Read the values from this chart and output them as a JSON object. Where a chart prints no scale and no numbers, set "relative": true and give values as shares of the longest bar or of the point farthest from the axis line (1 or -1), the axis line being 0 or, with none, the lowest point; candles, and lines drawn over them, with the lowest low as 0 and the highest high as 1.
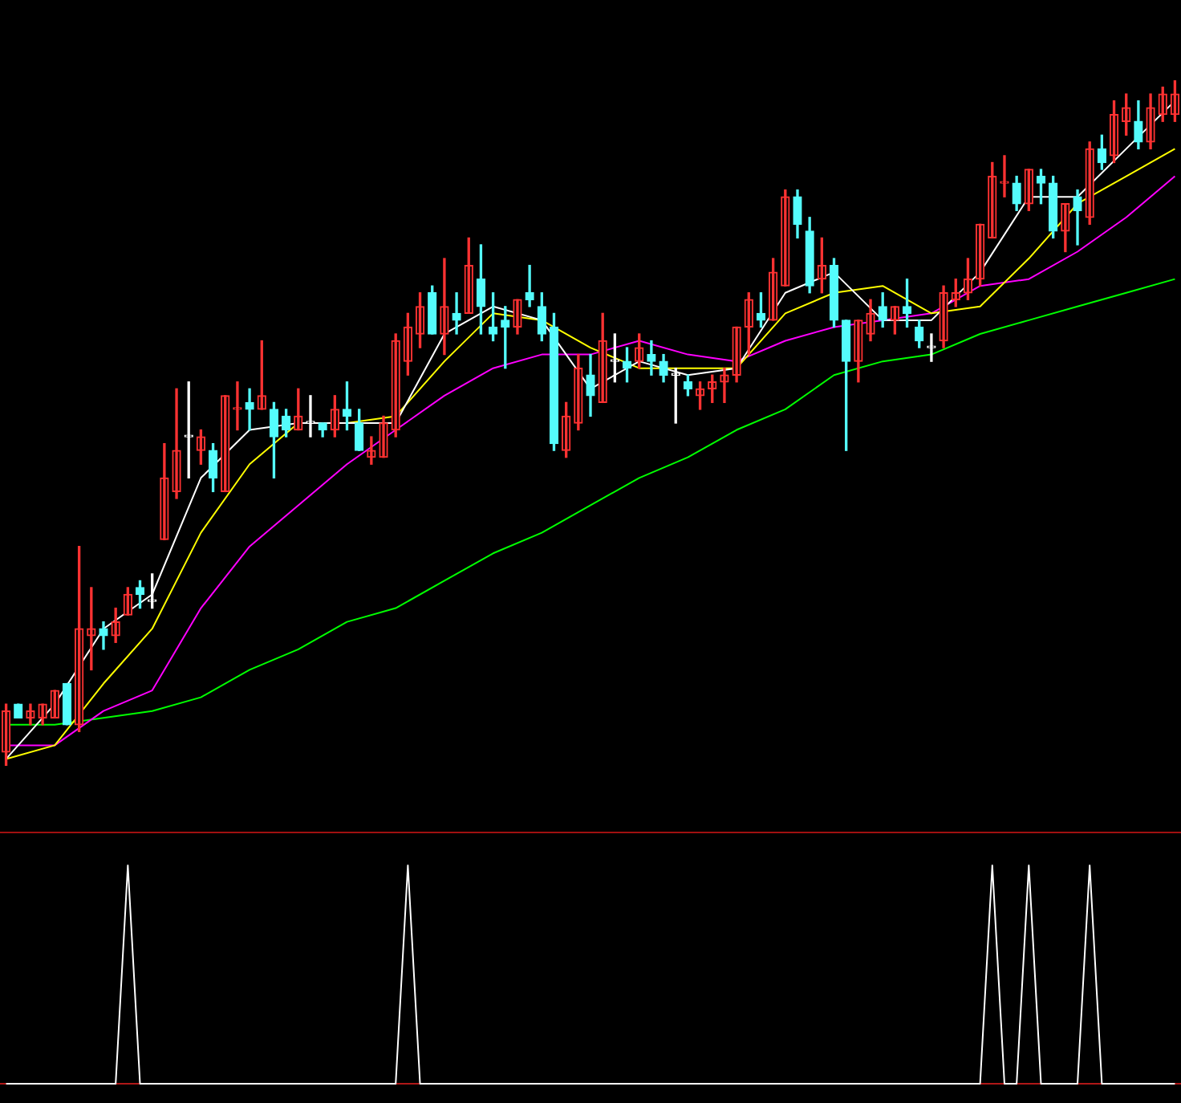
{
  "chart_data": [
    {
      "type": "candlestick",
      "relative": true,
      "categories": [
        null,
        null,
        null,
        null,
        null,
        null,
        null,
        null,
        null,
        null,
        null,
        null,
        null,
        null,
        null,
        null,
        null,
        null,
        null,
        null,
        null,
        null,
        null,
        null,
        null,
        null,
        null,
        null,
        null,
        null,
        null,
        null,
        null,
        null,
        null,
        null,
        null,
        null,
        null,
        null,
        null,
        null,
        null,
        null,
        null,
        null,
        null,
        null,
        null,
        null,
        null,
        null,
        null,
        null,
        null,
        null,
        null,
        null,
        null,
        null,
        null,
        null,
        null,
        null,
        null,
        null,
        null,
        null,
        null,
        null,
        null,
        null,
        null,
        null,
        null,
        null,
        null,
        null,
        null,
        null,
        null,
        null,
        null,
        null,
        null,
        null,
        null,
        null,
        null,
        null,
        null,
        null,
        null,
        null,
        null,
        null,
        null
      ],
      "ohlc": [
        [
          0.02,
          0.09,
          0,
          0.08
        ],
        [
          0.09,
          0.09,
          0.07,
          0.07
        ],
        [
          0.07,
          0.09,
          0.06,
          0.08
        ],
        [
          0.07,
          0.09,
          0.06,
          0.09
        ],
        [
          0.07,
          0.11,
          0.07,
          0.11
        ],
        [
          0.12,
          0.12,
          0.06,
          0.06
        ],
        [
          0.06,
          0.32,
          0.05,
          0.2
        ],
        [
          0.19,
          0.26,
          0.14,
          0.2
        ],
        [
          0.2,
          0.21,
          0.17,
          0.19
        ],
        [
          0.19,
          0.23,
          0.18,
          0.21
        ],
        [
          0.22,
          0.26,
          0.22,
          0.25
        ],
        [
          0.26,
          0.27,
          0.23,
          0.25
        ],
        [
          0.24,
          0.28,
          0.23,
          0.24
        ],
        [
          0.33,
          0.47,
          0.33,
          0.42
        ],
        [
          0.4,
          0.55,
          0.39,
          0.46
        ],
        [
          0.48,
          0.56,
          0.42,
          0.48
        ],
        [
          0.46,
          0.49,
          0.44,
          0.48
        ],
        [
          0.46,
          0.47,
          0.4,
          0.42
        ],
        [
          0.4,
          0.54,
          0.4,
          0.54
        ],
        [
          0.52,
          0.56,
          0.49,
          0.52
        ],
        [
          0.53,
          0.55,
          0.49,
          0.52
        ],
        [
          0.52,
          0.62,
          0.52,
          0.54
        ],
        [
          0.52,
          0.53,
          0.42,
          0.48
        ],
        [
          0.51,
          0.52,
          0.48,
          0.49
        ],
        [
          0.49,
          0.55,
          0.49,
          0.51
        ],
        [
          0.5,
          0.54,
          0.48,
          0.5
        ],
        [
          0.5,
          0.5,
          0.48,
          0.49
        ],
        [
          0.49,
          0.54,
          0.48,
          0.52
        ],
        [
          0.52,
          0.56,
          0.49,
          0.51
        ],
        [
          0.5,
          0.52,
          0.46,
          0.46
        ],
        [
          0.45,
          0.48,
          0.44,
          0.46
        ],
        [
          0.45,
          0.51,
          0.45,
          0.5
        ],
        [
          0.49,
          0.63,
          0.48,
          0.62
        ],
        [
          0.59,
          0.66,
          0.57,
          0.64
        ],
        [
          0.63,
          0.69,
          0.61,
          0.67
        ],
        [
          0.69,
          0.7,
          0.63,
          0.63
        ],
        [
          0.63,
          0.74,
          0.6,
          0.67
        ],
        [
          0.66,
          0.69,
          0.63,
          0.65
        ],
        [
          0.66,
          0.77,
          0.66,
          0.73
        ],
        [
          0.71,
          0.76,
          0.63,
          0.67
        ],
        [
          0.64,
          0.69,
          0.62,
          0.63
        ],
        [
          0.65,
          0.67,
          0.58,
          0.64
        ],
        [
          0.64,
          0.68,
          0.63,
          0.68
        ],
        [
          0.69,
          0.73,
          0.67,
          0.68
        ],
        [
          0.67,
          0.69,
          0.62,
          0.63
        ],
        [
          0.64,
          0.66,
          0.46,
          0.47
        ],
        [
          0.46,
          0.53,
          0.45,
          0.51
        ],
        [
          0.5,
          0.6,
          0.49,
          0.58
        ],
        [
          0.57,
          0.6,
          0.51,
          0.54
        ],
        [
          0.53,
          0.66,
          0.53,
          0.62
        ],
        [
          0.59,
          0.63,
          0.56,
          0.59
        ],
        [
          0.59,
          0.61,
          0.56,
          0.58
        ],
        [
          0.59,
          0.63,
          0.58,
          0.61
        ],
        [
          0.6,
          0.62,
          0.57,
          0.59
        ],
        [
          0.59,
          0.6,
          0.56,
          0.57
        ],
        [
          0.57,
          0.58,
          0.5,
          0.57
        ],
        [
          0.56,
          0.57,
          0.54,
          0.55
        ],
        [
          0.54,
          0.56,
          0.52,
          0.55
        ],
        [
          0.55,
          0.57,
          0.53,
          0.56
        ],
        [
          0.56,
          0.58,
          0.53,
          0.57
        ],
        [
          0.57,
          0.64,
          0.56,
          0.64
        ],
        [
          0.64,
          0.69,
          0.6,
          0.68
        ],
        [
          0.66,
          0.69,
          0.64,
          0.65
        ],
        [
          0.65,
          0.74,
          0.65,
          0.72
        ],
        [
          0.7,
          0.84,
          0.7,
          0.83
        ],
        [
          0.83,
          0.84,
          0.77,
          0.79
        ],
        [
          0.78,
          0.8,
          0.69,
          0.7
        ],
        [
          0.71,
          0.77,
          0.69,
          0.73
        ],
        [
          0.73,
          0.74,
          0.64,
          0.65
        ],
        [
          0.65,
          0.65,
          0.46,
          0.59
        ],
        [
          0.59,
          0.65,
          0.56,
          0.65
        ],
        [
          0.63,
          0.68,
          0.62,
          0.66
        ],
        [
          0.67,
          0.69,
          0.64,
          0.65
        ],
        [
          0.65,
          0.67,
          0.63,
          0.67
        ],
        [
          0.67,
          0.71,
          0.64,
          0.66
        ],
        [
          0.64,
          0.65,
          0.61,
          0.62
        ],
        [
          0.61,
          0.63,
          0.59,
          0.61
        ],
        [
          0.62,
          0.7,
          0.61,
          0.69
        ],
        [
          0.68,
          0.71,
          0.67,
          0.69
        ],
        [
          0.69,
          0.74,
          0.68,
          0.71
        ],
        [
          0.71,
          0.79,
          0.7,
          0.79
        ],
        [
          0.77,
          0.88,
          0.77,
          0.86
        ],
        [
          0.85,
          0.89,
          0.83,
          0.85
        ],
        [
          0.85,
          0.86,
          0.81,
          0.82
        ],
        [
          0.82,
          0.87,
          0.81,
          0.87
        ],
        [
          0.86,
          0.87,
          0.82,
          0.85
        ],
        [
          0.85,
          0.86,
          0.77,
          0.78
        ],
        [
          0.78,
          0.82,
          0.75,
          0.82
        ],
        [
          0.83,
          0.84,
          0.76,
          0.81
        ],
        [
          0.8,
          0.91,
          0.79,
          0.9
        ],
        [
          0.9,
          0.92,
          0.87,
          0.88
        ],
        [
          0.89,
          0.97,
          0.88,
          0.95
        ],
        [
          0.94,
          0.98,
          0.92,
          0.96
        ],
        [
          0.94,
          0.97,
          0.9,
          0.91
        ],
        [
          0.91,
          0.98,
          0.9,
          0.96
        ],
        [
          0.95,
          0.99,
          0.94,
          0.98
        ],
        [
          0.95,
          1,
          0.94,
          0.98
        ]
      ],
      "colors": [
        "#ff3232",
        "#54fcfc",
        "#ff3232",
        "#ff3232",
        "#ff3232",
        "#54fcfc",
        "#ff3232",
        "#ff3232",
        "#54fcfc",
        "#ff3232",
        "#ff3232",
        "#54fcfc",
        "#ffffff",
        "#ff3232",
        "#ff3232",
        "#ffffff",
        "#ff3232",
        "#54fcfc",
        "#ff3232",
        "#ff3232",
        "#54fcfc",
        "#ff3232",
        "#54fcfc",
        "#54fcfc",
        "#ff3232",
        "#ffffff",
        "#54fcfc",
        "#ff3232",
        "#54fcfc",
        "#54fcfc",
        "#ff3232",
        "#ff3232",
        "#ff3232",
        "#ff3232",
        "#ff3232",
        "#54fcfc",
        "#ff3232",
        "#54fcfc",
        "#ff3232",
        "#54fcfc",
        "#54fcfc",
        "#54fcfc",
        "#ff3232",
        "#54fcfc",
        "#54fcfc",
        "#54fcfc",
        "#ff3232",
        "#ff3232",
        "#54fcfc",
        "#ff3232",
        "#ffffff",
        "#54fcfc",
        "#ff3232",
        "#54fcfc",
        "#54fcfc",
        "#ffffff",
        "#54fcfc",
        "#ff3232",
        "#ff3232",
        "#ff3232",
        "#ff3232",
        "#ff3232",
        "#54fcfc",
        "#ff3232",
        "#ff3232",
        "#54fcfc",
        "#54fcfc",
        "#ff3232",
        "#54fcfc",
        "#54fcfc",
        "#ff3232",
        "#ff3232",
        "#54fcfc",
        "#ff3232",
        "#54fcfc",
        "#54fcfc",
        "#ffffff",
        "#ff3232",
        "#ff3232",
        "#ff3232",
        "#ff3232",
        "#ff3232",
        "#ff3232",
        "#54fcfc",
        "#ff3232",
        "#54fcfc",
        "#54fcfc",
        "#ff3232",
        "#54fcfc",
        "#ff3232",
        "#54fcfc",
        "#ff3232",
        "#ff3232",
        "#54fcfc",
        "#ff3232",
        "#ff3232",
        "#ff3232"
      ],
      "series": [
        {
          "type": "line",
          "color": "#ffffff",
          "values": [
            0.01,
            null,
            null,
            null,
            0.09,
            null,
            null,
            null,
            0.2,
            null,
            null,
            null,
            0.25,
            null,
            null,
            null,
            0.42,
            null,
            null,
            null,
            0.49,
            null,
            null,
            null,
            0.5,
            null,
            null,
            null,
            0.5,
            null,
            null,
            null,
            0.5,
            null,
            null,
            null,
            0.63,
            null,
            null,
            null,
            0.67,
            null,
            null,
            null,
            0.65,
            null,
            null,
            null,
            0.55,
            null,
            null,
            null,
            0.59,
            null,
            null,
            null,
            0.57,
            null,
            null,
            null,
            0.58,
            null,
            null,
            null,
            0.69,
            null,
            null,
            null,
            0.72,
            null,
            null,
            null,
            0.65,
            null,
            null,
            null,
            0.65,
            null,
            null,
            null,
            0.72,
            null,
            null,
            null,
            0.83,
            null,
            null,
            null,
            0.83,
            null,
            null,
            null,
            0.9,
            null,
            null,
            null,
            0.97
          ]
        },
        {
          "type": "line",
          "color": "#ffff00",
          "values": [
            0.01,
            null,
            null,
            null,
            0.03,
            null,
            null,
            null,
            0.12,
            null,
            null,
            null,
            0.2,
            null,
            null,
            null,
            0.34,
            null,
            null,
            null,
            0.44,
            null,
            null,
            null,
            0.5,
            null,
            null,
            null,
            0.5,
            null,
            null,
            null,
            0.51,
            null,
            null,
            null,
            0.59,
            null,
            null,
            null,
            0.66,
            null,
            null,
            null,
            0.65,
            null,
            null,
            null,
            0.61,
            null,
            null,
            null,
            0.58,
            null,
            null,
            null,
            0.58,
            null,
            null,
            null,
            0.58,
            null,
            null,
            null,
            0.66,
            null,
            null,
            null,
            0.69,
            null,
            null,
            null,
            0.7,
            null,
            null,
            null,
            0.66,
            null,
            null,
            null,
            0.67,
            null,
            null,
            null,
            0.74,
            null,
            null,
            null,
            0.82,
            null,
            null,
            null,
            0.86,
            null,
            null,
            null,
            0.9
          ]
        },
        {
          "type": "line",
          "color": "#ff00ff",
          "values": [
            0.03,
            null,
            null,
            null,
            0.03,
            null,
            null,
            null,
            0.08,
            null,
            null,
            null,
            0.11,
            null,
            null,
            null,
            0.23,
            null,
            null,
            null,
            0.32,
            null,
            null,
            null,
            0.38,
            null,
            null,
            null,
            0.44,
            null,
            null,
            null,
            0.49,
            null,
            null,
            null,
            0.54,
            null,
            null,
            null,
            0.58,
            null,
            null,
            null,
            0.6,
            null,
            null,
            null,
            0.6,
            null,
            null,
            null,
            0.62,
            null,
            null,
            null,
            0.6,
            null,
            null,
            null,
            0.59,
            null,
            null,
            null,
            0.62,
            null,
            null,
            null,
            0.64,
            null,
            null,
            null,
            0.65,
            null,
            null,
            null,
            0.66,
            null,
            null,
            null,
            0.7,
            null,
            null,
            null,
            0.71,
            null,
            null,
            null,
            0.75,
            null,
            null,
            null,
            0.8,
            null,
            null,
            null,
            0.86
          ]
        },
        {
          "type": "line",
          "color": "#00ff00",
          "values": [
            0.06,
            null,
            null,
            null,
            0.06,
            null,
            null,
            null,
            0.07,
            null,
            null,
            null,
            0.08,
            null,
            null,
            null,
            0.1,
            null,
            null,
            null,
            0.14,
            null,
            null,
            null,
            0.17,
            null,
            null,
            null,
            0.21,
            null,
            null,
            null,
            0.23,
            null,
            null,
            null,
            0.27,
            null,
            null,
            null,
            0.31,
            null,
            null,
            null,
            0.34,
            null,
            null,
            null,
            0.38,
            null,
            null,
            null,
            0.42,
            null,
            null,
            null,
            0.45,
            null,
            null,
            null,
            0.49,
            null,
            null,
            null,
            0.52,
            null,
            null,
            null,
            0.57,
            null,
            null,
            null,
            0.59,
            null,
            null,
            null,
            0.6,
            null,
            null,
            null,
            0.63,
            null,
            null,
            null,
            0.65,
            null,
            null,
            null,
            0.67,
            null,
            null,
            null,
            0.69,
            null,
            null,
            null,
            0.71
          ]
        }
      ]
    },
    {
      "type": "line",
      "relative": true,
      "categories": [
        null,
        null,
        null,
        null,
        null,
        null,
        null,
        null,
        null,
        null,
        null,
        null,
        null,
        null,
        null,
        null,
        null,
        null,
        null,
        null,
        null,
        null,
        null,
        null,
        null,
        null,
        null,
        null,
        null,
        null,
        null,
        null,
        null,
        null,
        null,
        null,
        null,
        null,
        null,
        null,
        null,
        null,
        null,
        null,
        null,
        null,
        null,
        null,
        null,
        null,
        null,
        null,
        null,
        null,
        null,
        null,
        null,
        null,
        null,
        null,
        null,
        null,
        null,
        null,
        null,
        null,
        null,
        null,
        null,
        null,
        null,
        null,
        null,
        null,
        null,
        null,
        null,
        null,
        null,
        null,
        null,
        null,
        null,
        null,
        null,
        null,
        null,
        null,
        null,
        null,
        null,
        null,
        null,
        null,
        null,
        null,
        null
      ],
      "series": [
        {
          "color": "#ffffff",
          "values": [
            0,
            0,
            0,
            0,
            0,
            0,
            0,
            0,
            0,
            0,
            1,
            0,
            0,
            0,
            0,
            0,
            0,
            0,
            0,
            0,
            0,
            0,
            0,
            0,
            0,
            0,
            0,
            0,
            0,
            0,
            0,
            0,
            0,
            1,
            0,
            0,
            0,
            0,
            0,
            0,
            0,
            0,
            0,
            0,
            0,
            0,
            0,
            0,
            0,
            0,
            0,
            0,
            0,
            0,
            0,
            0,
            0,
            0,
            0,
            0,
            0,
            0,
            0,
            0,
            0,
            0,
            0,
            0,
            0,
            0,
            0,
            0,
            0,
            0,
            0,
            0,
            0,
            0,
            0,
            0,
            0,
            1,
            0,
            0,
            1,
            0,
            0,
            0,
            0,
            1,
            0,
            0,
            0,
            0,
            0,
            0,
            0
          ]
        }
      ]
    }
  ]
}
